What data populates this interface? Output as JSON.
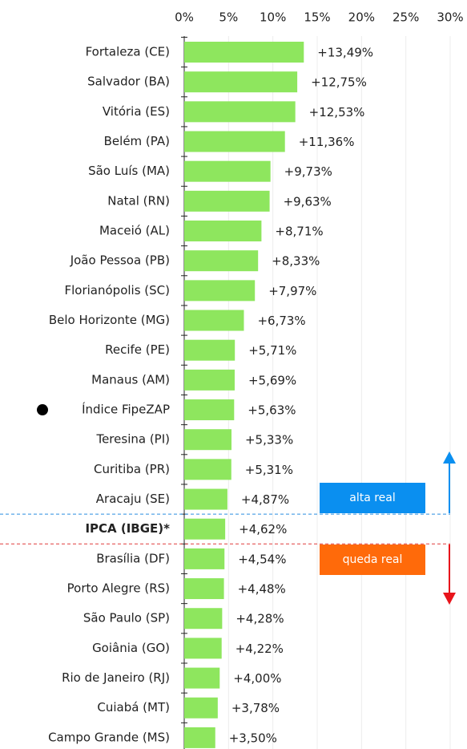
{
  "chart_data": {
    "type": "barh",
    "categories": [
      "Fortaleza (CE)",
      "Salvador (BA)",
      "Vitória (ES)",
      "Belém (PA)",
      "São Luís (MA)",
      "Natal (RN)",
      "Maceió (AL)",
      "João Pessoa (PB)",
      "Florianópolis (SC)",
      "Belo Horizonte (MG)",
      "Recife (PE)",
      "Manaus (AM)",
      "Índice FipeZAP",
      "Teresina (PI)",
      "Curitiba (PR)",
      "Aracaju (SE)",
      "IPCA (IBGE)*",
      "Brasília (DF)",
      "Porto Alegre (RS)",
      "São Paulo (SP)",
      "Goiânia (GO)",
      "Rio de Janeiro (RJ)",
      "Cuiabá (MT)",
      "Campo Grande (MS)"
    ],
    "values": [
      13.49,
      12.75,
      12.53,
      11.36,
      9.73,
      9.63,
      8.71,
      8.33,
      7.97,
      6.73,
      5.71,
      5.69,
      5.63,
      5.33,
      5.31,
      4.87,
      4.62,
      4.54,
      4.48,
      4.28,
      4.22,
      4.0,
      3.78,
      3.5
    ],
    "value_labels": [
      "+13,49%",
      "+12,75%",
      "+12,53%",
      "+11,36%",
      "+9,73%",
      "+9,63%",
      "+8,71%",
      "+8,33%",
      "+7,97%",
      "+6,73%",
      "+5,71%",
      "+5,69%",
      "+5,63%",
      "+5,33%",
      "+5,31%",
      "+4,87%",
      "+4,62%",
      "+4,54%",
      "+4,48%",
      "+4,28%",
      "+4,22%",
      "+4,00%",
      "+3,78%",
      "+3,50%"
    ],
    "color": "#8ee65e",
    "xlim": [
      0,
      30
    ],
    "xticks": [
      {
        "value": 0,
        "label": "0%"
      },
      {
        "value": 5,
        "label": "5%"
      },
      {
        "value": 10,
        "label": "10%"
      },
      {
        "value": 15,
        "label": "15%"
      },
      {
        "value": 20,
        "label": "20%"
      },
      {
        "value": 25,
        "label": "25%"
      },
      {
        "value": 30,
        "label": "30%"
      }
    ],
    "grid": true,
    "annotations": [
      "alta real",
      "queda real"
    ]
  }
}
